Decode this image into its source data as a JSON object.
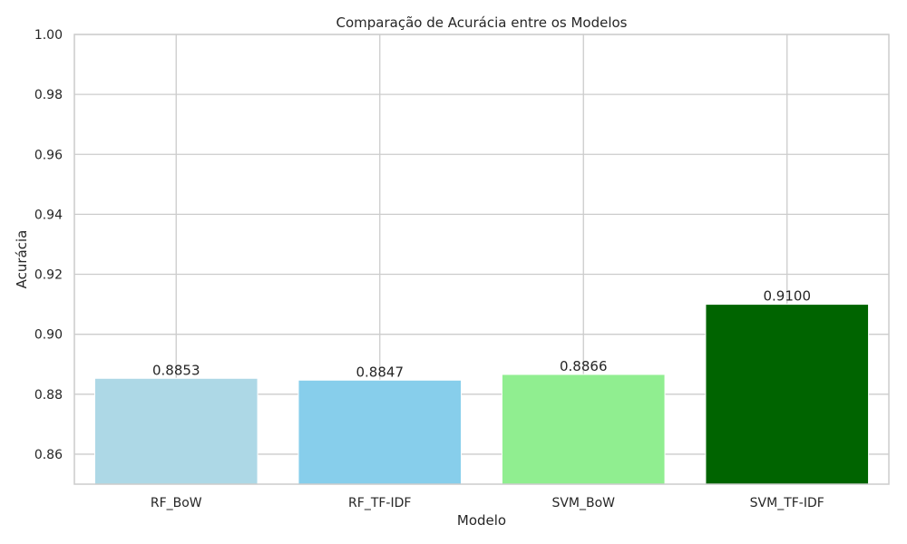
{
  "chart_data": {
    "type": "bar",
    "title": "Comparação de Acurácia entre os Modelos",
    "xlabel": "Modelo",
    "ylabel": "Acurácia",
    "categories": [
      "RF_BoW",
      "RF_TF-IDF",
      "SVM_BoW",
      "SVM_TF-IDF"
    ],
    "values": [
      0.8853,
      0.8847,
      0.8866,
      0.91
    ],
    "value_labels": [
      "0.8853",
      "0.8847",
      "0.8866",
      "0.9100"
    ],
    "colors": [
      "#add8e6",
      "#87ceeb",
      "#90ee90",
      "#006400"
    ],
    "ylim": [
      0.85,
      1.0
    ],
    "yticks": [
      0.86,
      0.88,
      0.9,
      0.92,
      0.94,
      0.96,
      0.98,
      1.0
    ],
    "ytick_labels": [
      "0.86",
      "0.88",
      "0.90",
      "0.92",
      "0.94",
      "0.96",
      "0.98",
      "1.00"
    ],
    "grid": true,
    "legend": "none"
  }
}
